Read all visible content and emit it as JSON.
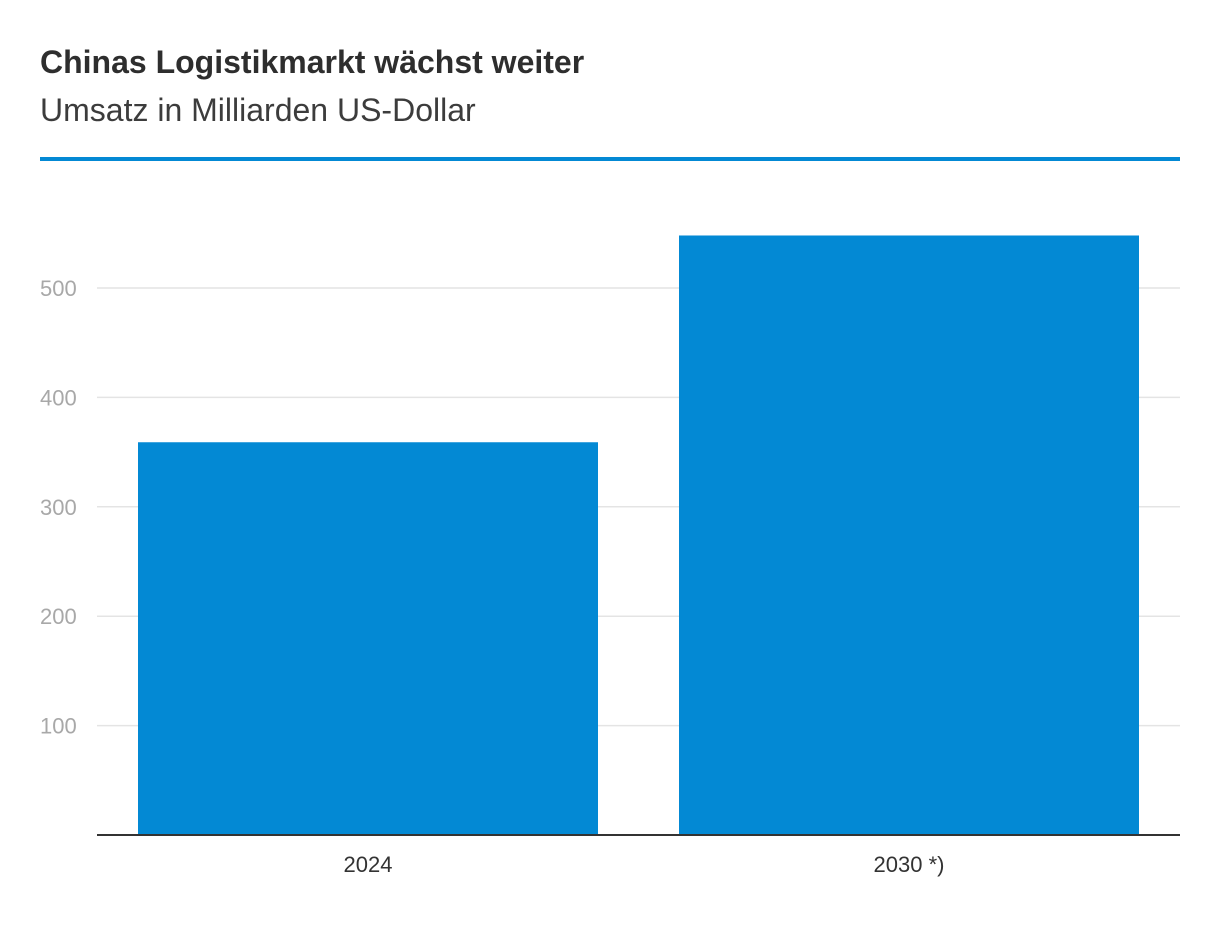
{
  "chart_data": {
    "type": "bar",
    "title": "Chinas Logistikmarkt wächst weiter",
    "subtitle": "Umsatz in Milliarden US-Dollar",
    "xlabel": "",
    "ylabel": "",
    "categories": [
      "2024",
      "2030 *)"
    ],
    "values": [
      359,
      548
    ],
    "ylim": [
      0,
      560
    ],
    "yticks": [
      100,
      200,
      300,
      400,
      500
    ],
    "grid": true,
    "legend": "none"
  },
  "colors": {
    "bar": "#0389d4",
    "accent_rule": "#0389d4"
  }
}
